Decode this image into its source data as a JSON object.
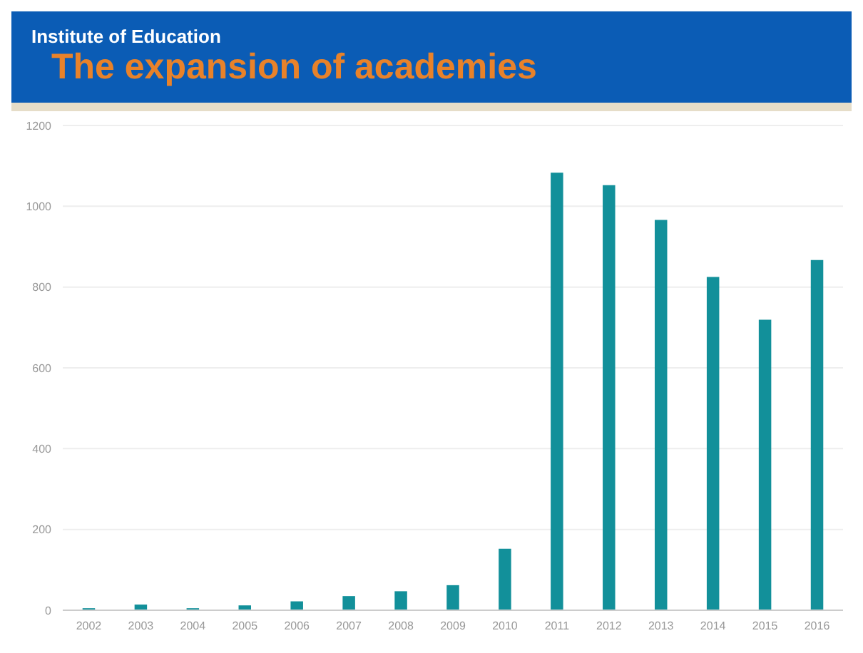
{
  "chart_data": {
    "type": "bar",
    "title": "The expansion of academies",
    "subtitle": "Institute of Education",
    "categories": [
      "2002",
      "2003",
      "2004",
      "2005",
      "2006",
      "2007",
      "2008",
      "2009",
      "2010",
      "2011",
      "2012",
      "2013",
      "2014",
      "2015",
      "2016"
    ],
    "values": [
      5,
      14,
      5,
      12,
      22,
      35,
      47,
      62,
      152,
      1083,
      1052,
      966,
      825,
      719,
      867
    ],
    "color": "#12909a",
    "ylim": [
      0,
      1200
    ],
    "yticks": [
      0,
      200,
      400,
      600,
      800,
      1000,
      1200
    ],
    "grid": "y"
  }
}
